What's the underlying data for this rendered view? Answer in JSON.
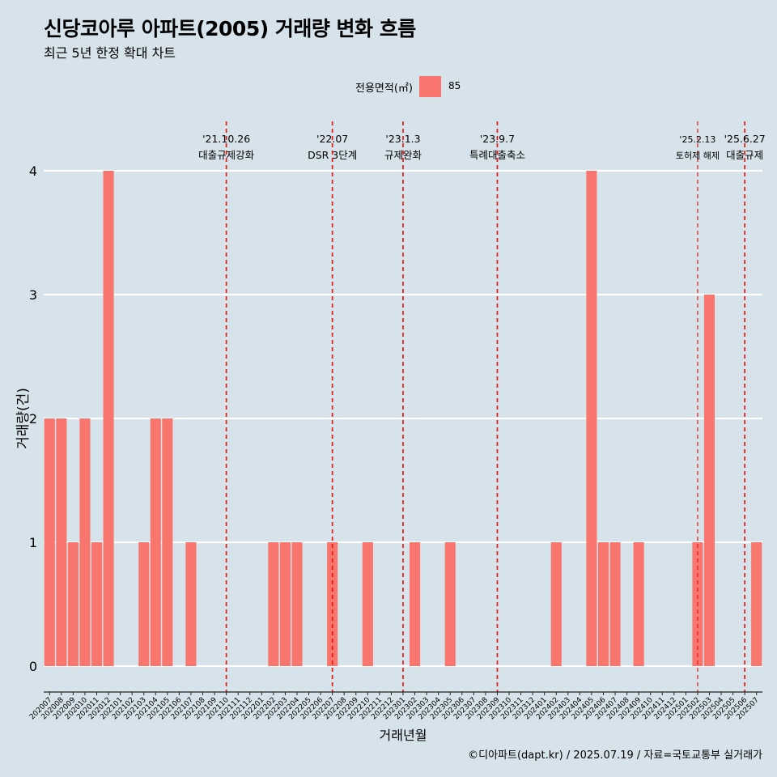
{
  "header": {
    "title": "신당코아루 아파트(2005) 거래량 변화 흐름",
    "subtitle": "최근 5년 한정 확대 차트"
  },
  "legend": {
    "title": "전용면적(㎡)",
    "label": "85"
  },
  "caption": "©디아파트(dapt.kr) / 2025.07.19 / 자료=국토교통부 실거래가",
  "colors": {
    "background": "#d6e3ea",
    "bar": "#f8766d",
    "gridline": "#ffffff",
    "event_line": "#e8170f"
  },
  "chart_data": {
    "type": "bar",
    "xlabel": "거래년월",
    "ylabel": "거래량(건)",
    "ylim": [
      0,
      4
    ],
    "yticks": [
      0,
      1,
      2,
      3,
      4
    ],
    "grid": true,
    "legend_position": "top",
    "categories": [
      "202007",
      "202008",
      "202009",
      "202010",
      "202011",
      "202012",
      "202101",
      "202102",
      "202103",
      "202104",
      "202105",
      "202106",
      "202107",
      "202108",
      "202109",
      "202110",
      "202111",
      "202112",
      "202201",
      "202202",
      "202203",
      "202204",
      "202205",
      "202206",
      "202207",
      "202208",
      "202209",
      "202210",
      "202211",
      "202212",
      "202301",
      "202302",
      "202303",
      "202304",
      "202305",
      "202306",
      "202307",
      "202308",
      "202309",
      "202310",
      "202311",
      "202312",
      "202401",
      "202402",
      "202403",
      "202404",
      "202405",
      "202406",
      "202407",
      "202408",
      "202409",
      "202410",
      "202411",
      "202412",
      "202501",
      "202502",
      "202503",
      "202504",
      "202505",
      "202506",
      "202507"
    ],
    "series": [
      {
        "name": "85",
        "values": [
          2,
          2,
          1,
          2,
          1,
          4,
          null,
          null,
          1,
          2,
          2,
          null,
          1,
          null,
          null,
          null,
          null,
          null,
          null,
          1,
          1,
          1,
          null,
          null,
          1,
          null,
          null,
          1,
          null,
          null,
          null,
          1,
          null,
          null,
          1,
          null,
          null,
          null,
          null,
          null,
          null,
          null,
          null,
          1,
          null,
          null,
          4,
          1,
          1,
          null,
          1,
          null,
          null,
          null,
          null,
          1,
          3,
          null,
          null,
          null,
          1
        ]
      }
    ],
    "annotations": [
      {
        "x": "202110",
        "date": "'21.10.26",
        "label": "대출규제강화"
      },
      {
        "x": "202207",
        "date": "'22.07",
        "label": "DSR 3단계"
      },
      {
        "x": "202301",
        "date": "'23.1.3",
        "label": "규제완화"
      },
      {
        "x": "202309",
        "date": "'23.9.7",
        "label": "특례대출축소"
      },
      {
        "x": "202502",
        "date": "'25.2.13",
        "label": "토허제 해제"
      },
      {
        "x": "202506",
        "date": "'25.6.27",
        "label": "대출규제"
      }
    ]
  }
}
